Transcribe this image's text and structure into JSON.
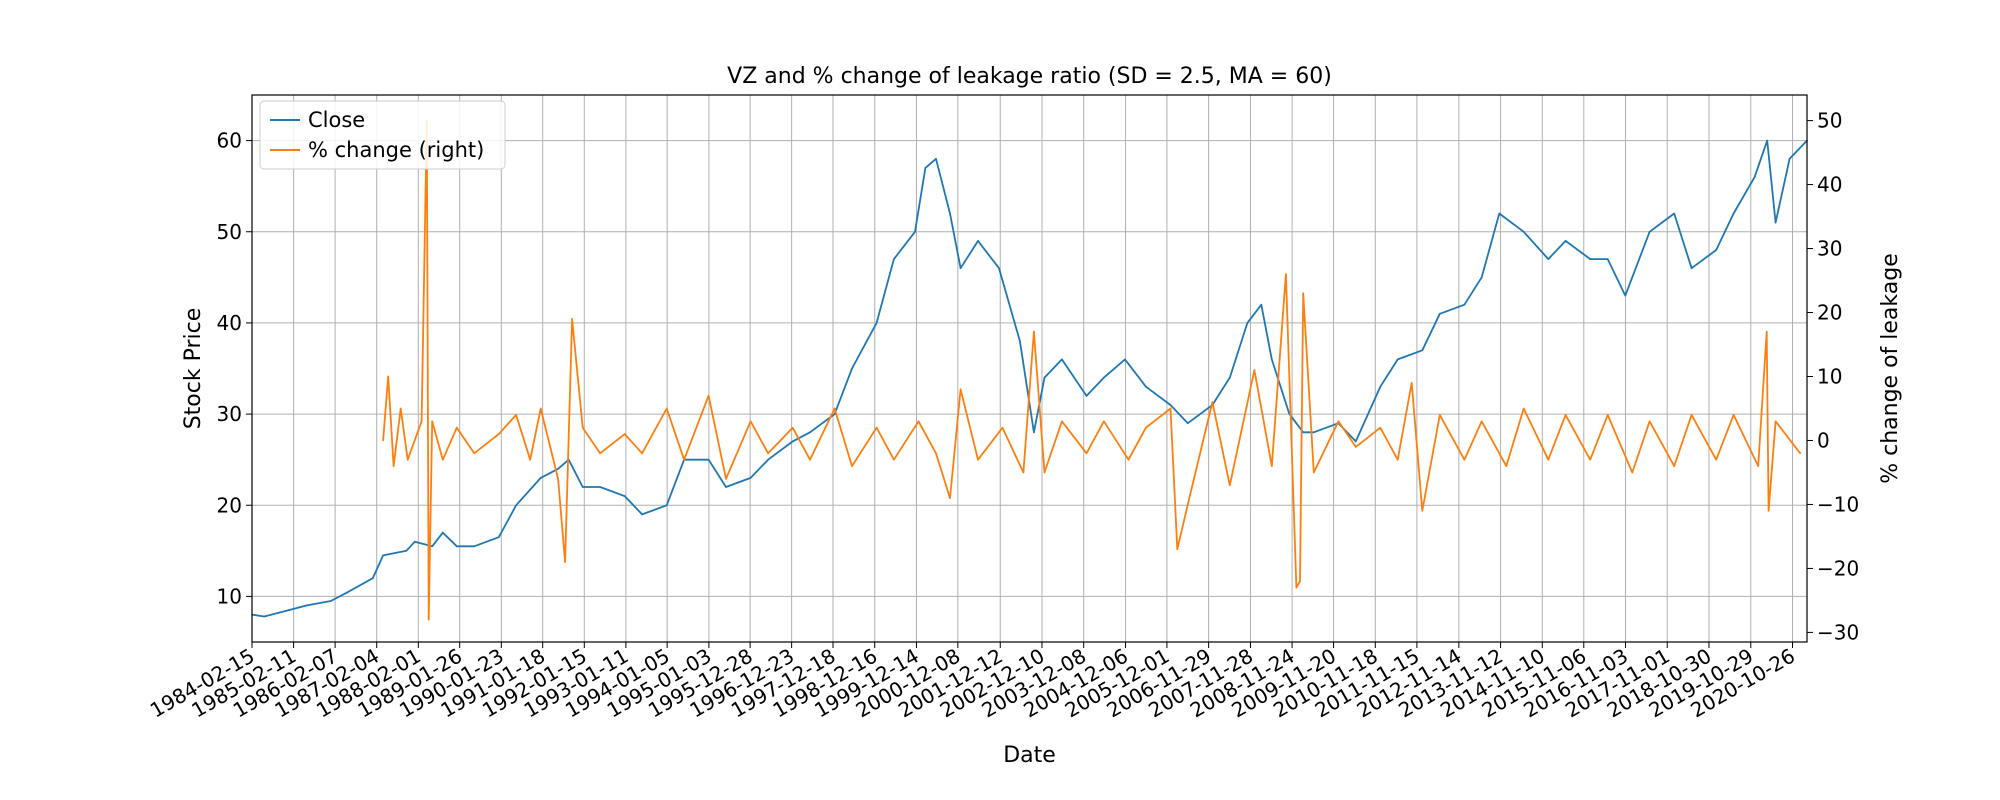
{
  "chart_data": {
    "type": "line",
    "title": "VZ and % change of leakage ratio (SD = 2.5, MA = 60)",
    "xlabel": "Date",
    "ylabel_left": "Stock Price",
    "ylabel_right": "% change of leakage",
    "xlim": [
      "1984-02-15",
      "2021-03-01"
    ],
    "ylim_left": [
      5,
      65
    ],
    "ylim_right": [
      -31.5,
      54
    ],
    "yticks_left": [
      10,
      20,
      30,
      40,
      50,
      60
    ],
    "yticks_right": [
      -30,
      -20,
      -10,
      0,
      10,
      20,
      30,
      40,
      50
    ],
    "grid": true,
    "legend_position": "upper-left",
    "xtick_labels": [
      "1984-02-15",
      "1985-02-11",
      "1986-02-07",
      "1987-02-04",
      "1988-02-01",
      "1989-01-26",
      "1990-01-23",
      "1991-01-18",
      "1992-01-15",
      "1993-01-11",
      "1994-01-05",
      "1995-01-03",
      "1995-12-28",
      "1996-12-23",
      "1997-12-18",
      "1998-12-16",
      "1999-12-14",
      "2000-12-08",
      "2001-12-12",
      "2002-12-10",
      "2003-12-08",
      "2004-12-06",
      "2005-12-01",
      "2006-11-29",
      "2007-11-28",
      "2008-11-24",
      "2009-11-20",
      "2010-11-18",
      "2011-11-15",
      "2012-11-14",
      "2013-11-12",
      "2014-11-10",
      "2015-11-06",
      "2016-11-03",
      "2017-11-01",
      "2018-10-30",
      "2019-10-29",
      "2020-10-26"
    ],
    "series": [
      {
        "name": "Close",
        "color": "#1f77b4",
        "axis": "left",
        "x": [
          "1984-02-15",
          "1984-06-01",
          "1985-01-01",
          "1985-06-01",
          "1986-01-01",
          "1986-06-01",
          "1987-01-01",
          "1987-04-01",
          "1987-10-20",
          "1988-01-01",
          "1988-06-01",
          "1988-09-01",
          "1989-01-01",
          "1989-06-01",
          "1990-01-01",
          "1990-06-01",
          "1991-01-01",
          "1991-06-01",
          "1991-09-01",
          "1992-01-01",
          "1992-06-01",
          "1993-01-01",
          "1993-06-01",
          "1994-01-01",
          "1994-06-01",
          "1995-01-01",
          "1995-06-01",
          "1996-01-01",
          "1996-06-01",
          "1997-01-01",
          "1997-06-01",
          "1998-01-01",
          "1998-06-01",
          "1999-01-01",
          "1999-06-01",
          "1999-12-01",
          "2000-03-01",
          "2000-06-01",
          "2000-10-01",
          "2001-01-01",
          "2001-06-01",
          "2001-12-01",
          "2002-06-01",
          "2002-10-01",
          "2003-01-01",
          "2003-06-01",
          "2004-01-01",
          "2004-06-01",
          "2004-12-01",
          "2005-06-01",
          "2006-01-01",
          "2006-06-01",
          "2007-01-01",
          "2007-06-01",
          "2007-11-01",
          "2008-03-01",
          "2008-06-01",
          "2008-11-01",
          "2009-03-01",
          "2009-06-01",
          "2010-01-01",
          "2010-06-01",
          "2011-01-01",
          "2011-06-01",
          "2012-01-01",
          "2012-06-01",
          "2013-01-01",
          "2013-06-01",
          "2013-11-01",
          "2014-06-01",
          "2015-01-01",
          "2015-06-01",
          "2016-01-01",
          "2016-06-01",
          "2016-11-01",
          "2017-06-01",
          "2018-01-01",
          "2018-06-01",
          "2019-01-01",
          "2019-06-01",
          "2019-12-01",
          "2020-03-20",
          "2020-06-01",
          "2020-10-01",
          "2021-03-01"
        ],
        "y": [
          8,
          7.8,
          8.5,
          9,
          9.5,
          10.5,
          12,
          14.5,
          15,
          16,
          15.5,
          17,
          15.5,
          15.5,
          16.5,
          20,
          23,
          24,
          25,
          22,
          22,
          21,
          19,
          20,
          25,
          25,
          22,
          23,
          25,
          27,
          28,
          30,
          35,
          40,
          47,
          50,
          57,
          58,
          52,
          46,
          49,
          46,
          38,
          28,
          34,
          36,
          32,
          34,
          36,
          33,
          31,
          29,
          31,
          34,
          40,
          42,
          36,
          30,
          28,
          28,
          29,
          27,
          33,
          36,
          37,
          41,
          42,
          45,
          52,
          50,
          47,
          49,
          47,
          47,
          43,
          50,
          52,
          46,
          48,
          52,
          56,
          60,
          51,
          58,
          60
        ]
      },
      {
        "name": "% change (right)",
        "color": "#ff7f0e",
        "axis": "right",
        "x": [
          "1987-04-01",
          "1987-05-15",
          "1987-07-01",
          "1987-09-01",
          "1987-11-01",
          "1988-03-01",
          "1988-04-15",
          "1988-05-01",
          "1988-06-01",
          "1988-09-01",
          "1989-01-01",
          "1989-06-01",
          "1990-01-01",
          "1990-06-01",
          "1990-10-01",
          "1991-01-01",
          "1991-06-01",
          "1991-08-01",
          "1991-10-01",
          "1992-01-01",
          "1992-06-01",
          "1993-01-01",
          "1993-06-01",
          "1994-01-01",
          "1994-06-01",
          "1995-01-01",
          "1995-06-01",
          "1996-01-01",
          "1996-06-01",
          "1997-01-01",
          "1997-06-01",
          "1998-01-01",
          "1998-06-01",
          "1999-01-01",
          "1999-06-01",
          "2000-01-01",
          "2000-06-01",
          "2000-10-01",
          "2001-01-01",
          "2001-06-01",
          "2002-01-01",
          "2002-07-01",
          "2002-10-01",
          "2003-01-01",
          "2003-06-01",
          "2004-01-01",
          "2004-06-01",
          "2005-01-01",
          "2005-06-01",
          "2006-01-01",
          "2006-03-01",
          "2006-06-01",
          "2007-01-01",
          "2007-06-01",
          "2008-01-01",
          "2008-06-01",
          "2008-10-01",
          "2009-01-01",
          "2009-02-01",
          "2009-03-01",
          "2009-06-01",
          "2010-01-01",
          "2010-06-01",
          "2011-01-01",
          "2011-06-01",
          "2011-10-01",
          "2012-01-01",
          "2012-06-01",
          "2013-01-01",
          "2013-06-01",
          "2014-01-01",
          "2014-06-01",
          "2015-01-01",
          "2015-06-01",
          "2016-01-01",
          "2016-06-01",
          "2017-01-01",
          "2017-06-01",
          "2018-01-01",
          "2018-06-01",
          "2019-01-01",
          "2019-06-01",
          "2020-01-01",
          "2020-03-15",
          "2020-04-01",
          "2020-06-01",
          "2021-01-01"
        ],
        "y": [
          0,
          10,
          -4,
          5,
          -3,
          3,
          50,
          -28,
          3,
          -3,
          2,
          -2,
          1,
          4,
          -3,
          5,
          -6,
          -19,
          19,
          2,
          -2,
          1,
          -2,
          5,
          -3,
          7,
          -6,
          3,
          -2,
          2,
          -3,
          5,
          -4,
          2,
          -3,
          3,
          -2,
          -9,
          8,
          -3,
          2,
          -5,
          17,
          -5,
          3,
          -2,
          3,
          -3,
          2,
          5,
          -17,
          -10,
          6,
          -7,
          11,
          -4,
          26,
          -23,
          -22,
          23,
          -5,
          3,
          -1,
          2,
          -3,
          9,
          -11,
          4,
          -3,
          3,
          -4,
          5,
          -3,
          4,
          -3,
          4,
          -5,
          3,
          -4,
          4,
          -3,
          4,
          -4,
          17,
          -11,
          3,
          -2
        ]
      }
    ]
  }
}
